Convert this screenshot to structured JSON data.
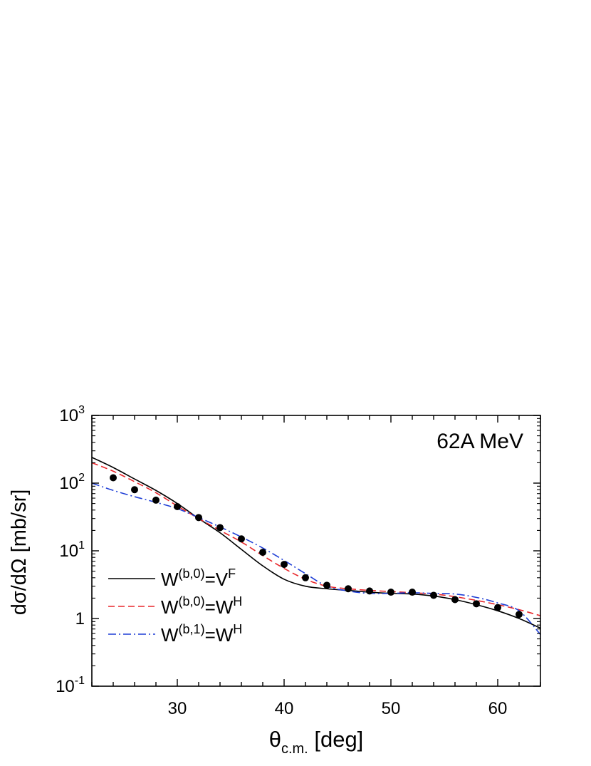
{
  "chart_data": {
    "type": "line",
    "xlabel": "θc.m. [deg]",
    "xlabel_parts": {
      "symbol": "θ",
      "subscript": "c.m.",
      "unit": "[deg]"
    },
    "ylabel": "dσ/dΩ [mb/sr]",
    "annotation": "62A MeV",
    "xlim": [
      22,
      64
    ],
    "ylim": [
      0.1,
      1000
    ],
    "yscale": "log",
    "grid": false,
    "legend_position": "lower-left",
    "x_ticks": [
      {
        "value": 30,
        "label": "30"
      },
      {
        "value": 40,
        "label": "40"
      },
      {
        "value": 50,
        "label": "50"
      },
      {
        "value": 60,
        "label": "60"
      }
    ],
    "y_ticks": [
      {
        "value": 1000,
        "base": "10",
        "exp": "3"
      },
      {
        "value": 100,
        "base": "10",
        "exp": "2"
      },
      {
        "value": 10,
        "base": "10",
        "exp": "1"
      },
      {
        "value": 1,
        "base": "1",
        "exp": ""
      },
      {
        "value": 0.1,
        "base": "10",
        "exp": "-1"
      }
    ],
    "series": [
      {
        "name": "W(b,0)=VF",
        "legend": {
          "pre": "W",
          "sup1": "(b,0)",
          "mid": "=V",
          "sup2": "F"
        },
        "style": "solid",
        "color": "#000000",
        "x": [
          22,
          24,
          26,
          28,
          30,
          32,
          34,
          36,
          38,
          40,
          42,
          44,
          46,
          48,
          50,
          52,
          54,
          56,
          58,
          60,
          62,
          64
        ],
        "y": [
          240,
          170,
          115,
          78,
          50,
          30,
          18.5,
          10.5,
          6.0,
          3.8,
          3.0,
          2.75,
          2.6,
          2.45,
          2.35,
          2.3,
          2.15,
          1.9,
          1.6,
          1.3,
          1.0,
          0.72
        ]
      },
      {
        "name": "W(b,0)=WH",
        "legend": {
          "pre": "W",
          "sup1": "(b,0)",
          "mid": "=W",
          "sup2": "H"
        },
        "style": "dashed",
        "color": "#e8262a",
        "x": [
          22,
          24,
          26,
          28,
          30,
          32,
          34,
          36,
          38,
          40,
          42,
          44,
          46,
          48,
          50,
          52,
          54,
          56,
          58,
          60,
          62,
          64
        ],
        "y": [
          200,
          150,
          105,
          72,
          46,
          30,
          20,
          13.5,
          8.5,
          5.5,
          3.8,
          3.0,
          2.75,
          2.6,
          2.5,
          2.4,
          2.3,
          2.1,
          1.85,
          1.6,
          1.35,
          1.1
        ]
      },
      {
        "name": "W(b,1)=WH",
        "legend": {
          "pre": "W",
          "sup1": "(b,1)",
          "mid": "=W",
          "sup2": "H"
        },
        "style": "dashdot",
        "color": "#1f3fd6",
        "x": [
          22,
          24,
          26,
          28,
          30,
          32,
          34,
          36,
          38,
          40,
          42,
          44,
          46,
          48,
          50,
          52,
          54,
          56,
          58,
          60,
          62,
          64
        ],
        "y": [
          100,
          78,
          63,
          52,
          42,
          31,
          22.5,
          16,
          11,
          7.2,
          4.6,
          3.0,
          2.55,
          2.35,
          2.35,
          2.4,
          2.35,
          2.3,
          2.05,
          1.7,
          1.3,
          0.58
        ]
      },
      {
        "name": "data",
        "style": "markers",
        "color": "#000000",
        "x": [
          24,
          26,
          28,
          30,
          32,
          34,
          36,
          38,
          40,
          42,
          44,
          46,
          48,
          50,
          52,
          54,
          56,
          58,
          60,
          62
        ],
        "y": [
          120,
          80,
          56,
          45,
          31,
          22,
          15,
          9.5,
          6.3,
          4.0,
          3.1,
          2.75,
          2.55,
          2.45,
          2.45,
          2.2,
          1.9,
          1.65,
          1.45,
          1.15
        ]
      }
    ]
  }
}
